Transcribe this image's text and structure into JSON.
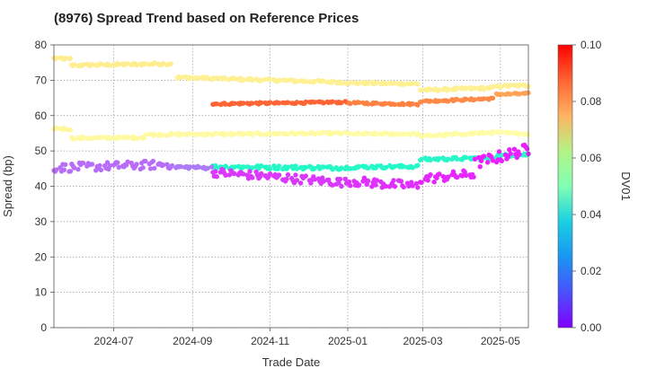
{
  "chart_data": {
    "type": "scatter",
    "title": "(8976)   Spread Trend based on Reference Prices",
    "xlabel": "Trade Date",
    "ylabel": "Spread (bp)",
    "colorbar_label": "DV01",
    "x_range": [
      "2024-05-15",
      "2025-05-23"
    ],
    "ylim": [
      0,
      80
    ],
    "y_ticks": [
      0,
      10,
      20,
      30,
      40,
      50,
      60,
      70,
      80
    ],
    "x_ticks": [
      {
        "date": "2024-07-01",
        "label": "2024-07"
      },
      {
        "date": "2024-09-01",
        "label": "2024-09"
      },
      {
        "date": "2024-11-01",
        "label": "2024-11"
      },
      {
        "date": "2025-01-01",
        "label": "2025-01"
      },
      {
        "date": "2025-03-01",
        "label": "2025-03"
      },
      {
        "date": "2025-05-01",
        "label": "2025-05"
      }
    ],
    "colorbar_range": [
      0,
      0.1
    ],
    "colorbar_ticks": [
      "0.00",
      "0.02",
      "0.04",
      "0.06",
      "0.08",
      "0.10"
    ],
    "colormap": "rainbow",
    "grid": true,
    "series": [
      {
        "start": "2024-05-15",
        "end": "2024-05-28",
        "y0": 76.2,
        "y1": 76.0,
        "noise": 0.3,
        "dv01": 0.062
      },
      {
        "start": "2024-05-29",
        "end": "2024-08-15",
        "y0": 74.2,
        "y1": 74.7,
        "noise": 0.35,
        "dv01": 0.062
      },
      {
        "start": "2024-08-20",
        "end": "2024-12-31",
        "y0": 70.8,
        "y1": 69.4,
        "noise": 0.35,
        "dv01": 0.061
      },
      {
        "start": "2025-01-02",
        "end": "2025-02-25",
        "y0": 69.2,
        "y1": 69.0,
        "noise": 0.3,
        "dv01": 0.061
      },
      {
        "start": "2025-02-27",
        "end": "2025-04-25",
        "y0": 67.2,
        "y1": 67.8,
        "noise": 0.35,
        "dv01": 0.061
      },
      {
        "start": "2025-04-27",
        "end": "2025-05-23",
        "y0": 68.3,
        "y1": 68.5,
        "noise": 0.3,
        "dv01": 0.061
      },
      {
        "start": "2024-09-17",
        "end": "2024-12-31",
        "y0": 63.3,
        "y1": 63.8,
        "noise": 0.25,
        "dv01": 0.087
      },
      {
        "start": "2025-01-02",
        "end": "2025-02-25",
        "y0": 63.6,
        "y1": 63.2,
        "noise": 0.25,
        "dv01": 0.083
      },
      {
        "start": "2025-02-27",
        "end": "2025-04-25",
        "y0": 64.0,
        "y1": 64.8,
        "noise": 0.25,
        "dv01": 0.082
      },
      {
        "start": "2025-04-27",
        "end": "2025-05-23",
        "y0": 66.0,
        "y1": 66.2,
        "noise": 0.25,
        "dv01": 0.078
      },
      {
        "start": "2024-05-15",
        "end": "2024-05-28",
        "y0": 56.4,
        "y1": 56.2,
        "noise": 0.3,
        "dv01": 0.058
      },
      {
        "start": "2024-05-29",
        "end": "2024-07-25",
        "y0": 53.6,
        "y1": 53.8,
        "noise": 0.3,
        "dv01": 0.057
      },
      {
        "start": "2024-07-26",
        "end": "2024-12-31",
        "y0": 54.6,
        "y1": 55.0,
        "noise": 0.3,
        "dv01": 0.056
      },
      {
        "start": "2025-01-02",
        "end": "2025-02-25",
        "y0": 54.8,
        "y1": 54.8,
        "noise": 0.3,
        "dv01": 0.055
      },
      {
        "start": "2025-02-27",
        "end": "2025-04-25",
        "y0": 54.2,
        "y1": 55.2,
        "noise": 0.3,
        "dv01": 0.055
      },
      {
        "start": "2025-04-27",
        "end": "2025-05-23",
        "y0": 55.2,
        "y1": 54.8,
        "noise": 0.3,
        "dv01": 0.054
      },
      {
        "start": "2024-09-17",
        "end": "2024-12-31",
        "y0": 45.5,
        "y1": 45.2,
        "noise": 0.5,
        "dv01": 0.043
      },
      {
        "start": "2025-01-02",
        "end": "2025-02-25",
        "y0": 45.4,
        "y1": 45.6,
        "noise": 0.4,
        "dv01": 0.043
      },
      {
        "start": "2025-02-27",
        "end": "2025-04-25",
        "y0": 47.6,
        "y1": 48.0,
        "noise": 0.4,
        "dv01": 0.042
      },
      {
        "start": "2025-04-27",
        "end": "2025-05-23",
        "y0": 48.6,
        "y1": 49.0,
        "noise": 0.4,
        "dv01": 0.041
      },
      {
        "start": "2024-05-15",
        "end": "2024-08-15",
        "y0": 45.2,
        "y1": 46.2,
        "noise": 1.2,
        "dv01": 0.014
      },
      {
        "start": "2024-08-16",
        "end": "2024-09-16",
        "y0": 45.5,
        "y1": 45.2,
        "noise": 0.4,
        "dv01": 0.016
      },
      {
        "start": "2024-09-17",
        "end": "2024-12-31",
        "y0": 44.0,
        "y1": 41.0,
        "noise": 1.2,
        "dv01": 0.007
      },
      {
        "start": "2025-01-02",
        "end": "2025-02-25",
        "y0": 41.5,
        "y1": 40.0,
        "noise": 1.3,
        "dv01": 0.006
      },
      {
        "start": "2025-02-27",
        "end": "2025-04-10",
        "y0": 42.0,
        "y1": 43.5,
        "noise": 1.3,
        "dv01": 0.005
      },
      {
        "start": "2025-04-11",
        "end": "2025-05-23",
        "y0": 46.5,
        "y1": 50.5,
        "noise": 1.6,
        "dv01": 0.004
      }
    ]
  }
}
